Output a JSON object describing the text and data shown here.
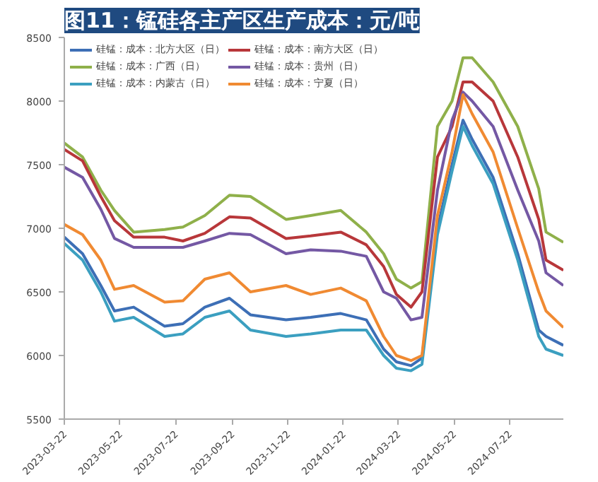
{
  "chart_data": {
    "type": "line",
    "title": "图11：锰硅各主产区生产成本：元/吨",
    "x": [
      "2023-03-22",
      "2023-04-11",
      "2023-05-01",
      "2023-05-16",
      "2023-06-06",
      "2023-07-10",
      "2023-07-30",
      "2023-08-23",
      "2023-09-19",
      "2023-10-12",
      "2023-11-20",
      "2023-12-17",
      "2024-01-19",
      "2024-02-16",
      "2024-03-06",
      "2024-03-20",
      "2024-04-05",
      "2024-04-17",
      "2024-05-04",
      "2024-05-20",
      "2024-06-01",
      "2024-06-11",
      "2024-07-04",
      "2024-07-31",
      "2024-08-23",
      "2024-08-31",
      "2024-09-19"
    ],
    "series": [
      {
        "name": "硅锰：成本：北方大区（日）",
        "color": "#3d6fb6",
        "values": [
          6930,
          6800,
          6550,
          6350,
          6380,
          6230,
          6250,
          6380,
          6450,
          6320,
          6280,
          6300,
          6330,
          6280,
          6050,
          5950,
          5920,
          5980,
          7000,
          7500,
          7850,
          7700,
          7400,
          6800,
          6200,
          6150,
          6080
        ]
      },
      {
        "name": "硅锰：成本：广西（日）",
        "color": "#8fb04a",
        "values": [
          7670,
          7560,
          7300,
          7140,
          6970,
          6990,
          7010,
          7100,
          7260,
          7250,
          7070,
          7100,
          7140,
          6970,
          6800,
          6600,
          6530,
          6580,
          7800,
          8000,
          8340,
          8340,
          8150,
          7800,
          7310,
          6970,
          6890
        ]
      },
      {
        "name": "硅锰：成本：内蒙古（日）",
        "color": "#3b9fc0",
        "values": [
          6880,
          6750,
          6500,
          6270,
          6300,
          6150,
          6170,
          6300,
          6350,
          6200,
          6150,
          6170,
          6200,
          6200,
          6000,
          5900,
          5880,
          5930,
          6950,
          7450,
          7800,
          7650,
          7350,
          6750,
          6150,
          6050,
          6000
        ]
      },
      {
        "name": "硅锰：成本：南方大区（日）",
        "color": "#b8373a",
        "values": [
          7620,
          7530,
          7250,
          7060,
          6930,
          6930,
          6900,
          6960,
          7090,
          7080,
          6920,
          6940,
          6970,
          6870,
          6700,
          6480,
          6380,
          6500,
          7560,
          7800,
          8150,
          8150,
          8000,
          7560,
          7070,
          6750,
          6670
        ]
      },
      {
        "name": "硅锰：成本：贵州（日）",
        "color": "#7458a4",
        "values": [
          7480,
          7400,
          7150,
          6920,
          6850,
          6850,
          6850,
          6900,
          6960,
          6950,
          6800,
          6830,
          6820,
          6780,
          6500,
          6450,
          6280,
          6300,
          7300,
          7850,
          8070,
          8000,
          7800,
          7300,
          6900,
          6650,
          6550
        ]
      },
      {
        "name": "硅锰：成本：宁夏（日）",
        "color": "#f08a32",
        "values": [
          7030,
          6950,
          6750,
          6520,
          6550,
          6420,
          6430,
          6600,
          6650,
          6500,
          6550,
          6480,
          6530,
          6430,
          6150,
          6000,
          5960,
          6000,
          7100,
          7600,
          8050,
          7900,
          7600,
          7000,
          6500,
          6350,
          6220
        ]
      }
    ],
    "xlim": [
      "2023-03-22",
      "2024-09-19"
    ],
    "xticks": [
      "2023-03-22",
      "2023-05-22",
      "2023-07-22",
      "2023-09-22",
      "2023-11-22",
      "2024-01-22",
      "2024-03-22",
      "2024-05-22",
      "2024-07-22"
    ],
    "ylim": [
      5500,
      8500
    ],
    "yticks": [
      5500,
      6000,
      6500,
      7000,
      7500,
      8000,
      8500
    ],
    "grid": false,
    "legend": "top",
    "marker": "none",
    "line_style": "solid"
  }
}
